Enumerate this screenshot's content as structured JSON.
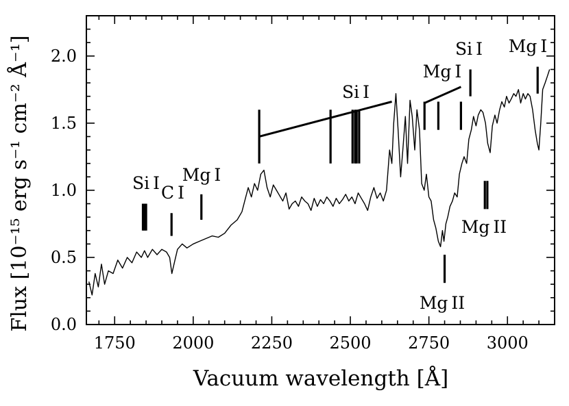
{
  "chart_data": {
    "type": "line",
    "title": "",
    "xlabel": "Vacuum wavelength [Å]",
    "ylabel": "Flux [10⁻¹⁵ erg s⁻¹ cm⁻² Å⁻¹]",
    "xlim": [
      1660,
      3150
    ],
    "ylim": [
      0.0,
      2.3
    ],
    "x_ticks": [
      1750,
      2000,
      2250,
      2500,
      2750,
      3000
    ],
    "x_tick_labels": [
      "1750",
      "2000",
      "2250",
      "2500",
      "2750",
      "3000"
    ],
    "y_ticks": [
      0.0,
      0.5,
      1.0,
      1.5,
      2.0
    ],
    "y_tick_labels": [
      "0.0",
      "0.5",
      "1.0",
      "1.5",
      "2.0"
    ],
    "grid": false,
    "series": [
      {
        "name": "spectrum",
        "x": [
          1668,
          1678,
          1688,
          1698,
          1708,
          1718,
          1730,
          1745,
          1760,
          1775,
          1790,
          1805,
          1820,
          1835,
          1845,
          1855,
          1870,
          1885,
          1900,
          1915,
          1925,
          1932,
          1940,
          1950,
          1965,
          1980,
          2000,
          2020,
          2040,
          2060,
          2080,
          2100,
          2120,
          2140,
          2155,
          2165,
          2175,
          2185,
          2195,
          2205,
          2215,
          2225,
          2235,
          2245,
          2255,
          2265,
          2275,
          2285,
          2295,
          2305,
          2315,
          2325,
          2335,
          2345,
          2355,
          2365,
          2375,
          2385,
          2395,
          2405,
          2415,
          2425,
          2435,
          2445,
          2455,
          2465,
          2475,
          2485,
          2495,
          2505,
          2515,
          2525,
          2535,
          2545,
          2555,
          2565,
          2575,
          2585,
          2595,
          2605,
          2615,
          2625,
          2632,
          2638,
          2645,
          2652,
          2660,
          2667,
          2675,
          2682,
          2690,
          2697,
          2705,
          2712,
          2720,
          2727,
          2735,
          2742,
          2750,
          2757,
          2765,
          2772,
          2780,
          2787,
          2793,
          2798,
          2804,
          2810,
          2817,
          2825,
          2832,
          2840,
          2847,
          2855,
          2862,
          2870,
          2877,
          2885,
          2892,
          2900,
          2907,
          2915,
          2922,
          2930,
          2937,
          2945,
          2952,
          2960,
          2967,
          2975,
          2982,
          2990,
          2997,
          3005,
          3012,
          3020,
          3027,
          3035,
          3042,
          3050,
          3057,
          3065,
          3072,
          3080,
          3088,
          3095,
          3100,
          3106,
          3112,
          3120,
          3127,
          3134
        ],
        "y": [
          0.32,
          0.22,
          0.38,
          0.28,
          0.45,
          0.3,
          0.4,
          0.38,
          0.48,
          0.42,
          0.5,
          0.46,
          0.54,
          0.5,
          0.55,
          0.5,
          0.56,
          0.52,
          0.56,
          0.54,
          0.5,
          0.38,
          0.46,
          0.56,
          0.6,
          0.57,
          0.6,
          0.62,
          0.64,
          0.66,
          0.65,
          0.68,
          0.74,
          0.78,
          0.84,
          0.93,
          1.02,
          0.95,
          1.05,
          1.0,
          1.12,
          1.15,
          1.02,
          0.95,
          1.04,
          1.0,
          0.96,
          0.92,
          0.98,
          0.86,
          0.9,
          0.92,
          0.88,
          0.95,
          0.92,
          0.9,
          0.85,
          0.94,
          0.88,
          0.93,
          0.9,
          0.95,
          0.92,
          0.88,
          0.94,
          0.9,
          0.93,
          0.97,
          0.92,
          0.95,
          0.9,
          0.98,
          0.94,
          0.9,
          0.85,
          0.95,
          1.02,
          0.94,
          0.98,
          0.92,
          1.0,
          1.3,
          1.2,
          1.5,
          1.72,
          1.45,
          1.1,
          1.3,
          1.55,
          1.2,
          1.67,
          1.55,
          1.3,
          1.6,
          1.45,
          1.05,
          1.0,
          1.12,
          0.95,
          0.92,
          0.78,
          0.72,
          0.62,
          0.58,
          0.7,
          0.62,
          0.75,
          0.8,
          0.88,
          0.92,
          0.98,
          0.95,
          1.12,
          1.2,
          1.25,
          1.2,
          1.38,
          1.45,
          1.55,
          1.48,
          1.56,
          1.6,
          1.58,
          1.5,
          1.35,
          1.28,
          1.48,
          1.56,
          1.5,
          1.6,
          1.66,
          1.62,
          1.7,
          1.65,
          1.68,
          1.72,
          1.7,
          1.75,
          1.65,
          1.72,
          1.68,
          1.72,
          1.7,
          1.6,
          1.45,
          1.35,
          1.3,
          1.5,
          1.75,
          1.8,
          1.85,
          1.9
        ]
      }
    ],
    "line_ids": [
      {
        "name": "Si I",
        "markers": [
          1840,
          1845,
          1850
        ],
        "marker_y": [
          0.7,
          0.9
        ],
        "label": "Si I"
      },
      {
        "name": "C I",
        "markers": [
          1931
        ],
        "marker_y": [
          0.66,
          0.83
        ],
        "label": "C I"
      },
      {
        "name": "Mg I",
        "markers": [
          2026
        ],
        "marker_y": [
          0.78,
          0.97
        ],
        "label": "Mg I"
      },
      {
        "name": "Si I multiplet",
        "markers": [
          2210,
          2437,
          2507,
          2515,
          2520,
          2528
        ],
        "marker_y": [
          1.2,
          1.6
        ],
        "bracket": [
          [
            2210,
            1.4
          ],
          [
            2632,
            1.66
          ]
        ],
        "label": "Si I"
      },
      {
        "name": "Mg I bracket",
        "markers": [
          2736,
          2780,
          2852
        ],
        "marker_y": [
          1.45,
          1.66
        ],
        "bracket": [
          [
            2736,
            1.65
          ],
          [
            2852,
            1.77
          ]
        ],
        "label": "Mg I"
      },
      {
        "name": "Si I 2882",
        "markers": [
          2882
        ],
        "marker_y": [
          1.7,
          1.9
        ],
        "label": "Si I"
      },
      {
        "name": "Mg II 2800",
        "markers": [
          2800
        ],
        "marker_y": [
          0.31,
          0.52
        ],
        "label": "Mg II"
      },
      {
        "name": "Mg II 2930",
        "markers": [
          2928,
          2936
        ],
        "marker_y": [
          0.86,
          1.07
        ],
        "label": "Mg II"
      },
      {
        "name": "Mg I 3100",
        "markers": [
          3096
        ],
        "marker_y": [
          1.72,
          1.92
        ],
        "label": "Mg I"
      }
    ]
  }
}
